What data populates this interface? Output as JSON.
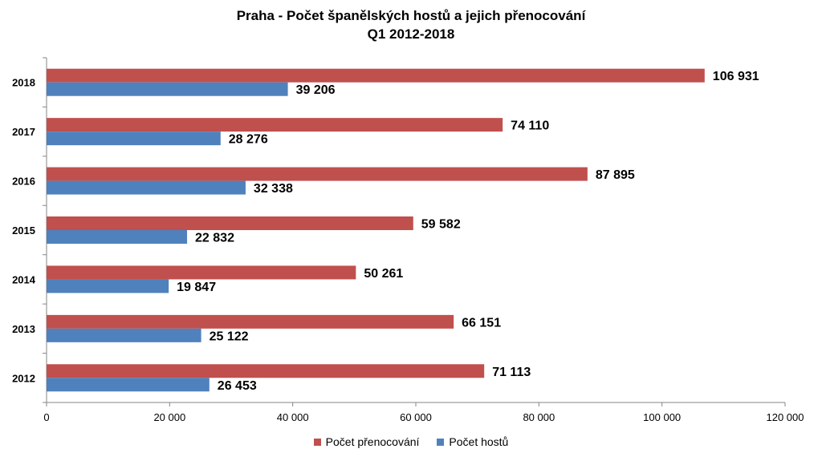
{
  "colors": {
    "nights": "#C0504D",
    "guests": "#4F81BD",
    "axis": "#868686",
    "text": "#000000"
  },
  "chart_data": {
    "type": "bar",
    "orientation": "horizontal",
    "title": "Praha - Počet španělských hostů a jejich přenocování",
    "subtitle": "Q1 2012-2018",
    "categories": [
      "2018",
      "2017",
      "2016",
      "2015",
      "2014",
      "2013",
      "2012"
    ],
    "series": [
      {
        "name": "Počet přenocování",
        "values": [
          106931,
          74110,
          87895,
          59582,
          50261,
          66151,
          71113
        ],
        "labels": [
          "106 931",
          "74 110",
          "87 895",
          "59 582",
          "50 261",
          "66 151",
          "71 113"
        ]
      },
      {
        "name": "Počet hostů",
        "values": [
          39206,
          28276,
          32338,
          22832,
          19847,
          25122,
          26453
        ],
        "labels": [
          "39 206",
          "28 276",
          "32 338",
          "22 832",
          "19 847",
          "25 122",
          "26 453"
        ]
      }
    ],
    "xlim": [
      0,
      120000
    ],
    "xticks": [
      0,
      20000,
      40000,
      60000,
      80000,
      100000,
      120000
    ],
    "xtick_labels": [
      "0",
      "20 000",
      "40 000",
      "60 000",
      "80 000",
      "100 000",
      "120 000"
    ],
    "grid": false,
    "legend_position": "bottom"
  }
}
